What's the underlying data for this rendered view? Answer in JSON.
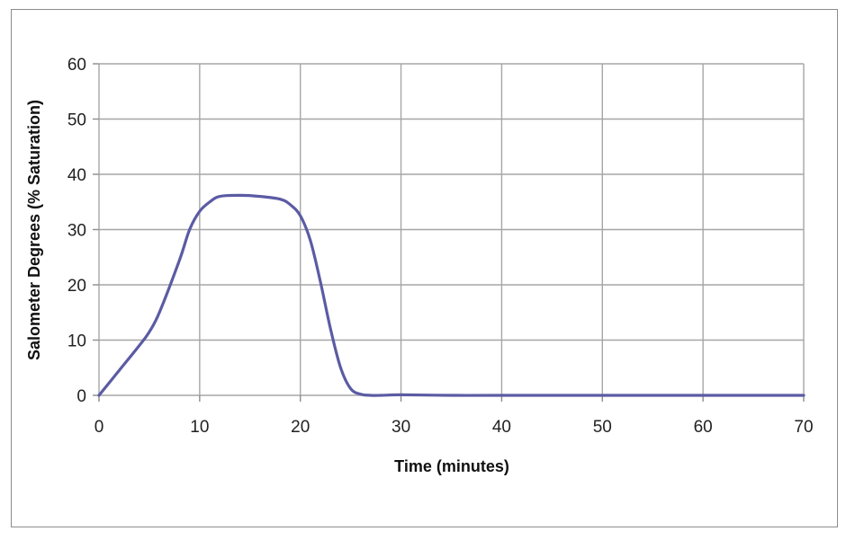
{
  "chart_data": {
    "type": "line",
    "title": "",
    "xlabel": "Time (minutes)",
    "ylabel": "Salometer Degrees (% Saturation)",
    "xlim": [
      0,
      70
    ],
    "ylim": [
      0,
      60
    ],
    "x_ticks": [
      "0",
      "10",
      "20",
      "30",
      "40",
      "50",
      "60",
      "70"
    ],
    "y_ticks": [
      "0",
      "10",
      "20",
      "30",
      "40",
      "50",
      "60"
    ],
    "grid": true,
    "legend": "none",
    "line_color": "#5b5ba4",
    "series": [
      {
        "x": [
          0,
          2,
          4,
          5,
          6,
          8,
          9,
          10,
          11,
          12,
          14,
          16,
          18,
          19,
          20,
          21,
          22,
          23,
          24,
          25,
          26,
          27,
          28,
          30,
          35,
          40,
          50,
          60,
          70
        ],
        "y": [
          0,
          4.5,
          9.0,
          11.5,
          15.0,
          24.5,
          30.0,
          33.3,
          35.0,
          36.0,
          36.2,
          36.0,
          35.5,
          34.5,
          32.5,
          28.0,
          20.5,
          12.0,
          5.0,
          1.2,
          0.2,
          0,
          0,
          0.1,
          0,
          0,
          0,
          0,
          0
        ]
      }
    ]
  }
}
